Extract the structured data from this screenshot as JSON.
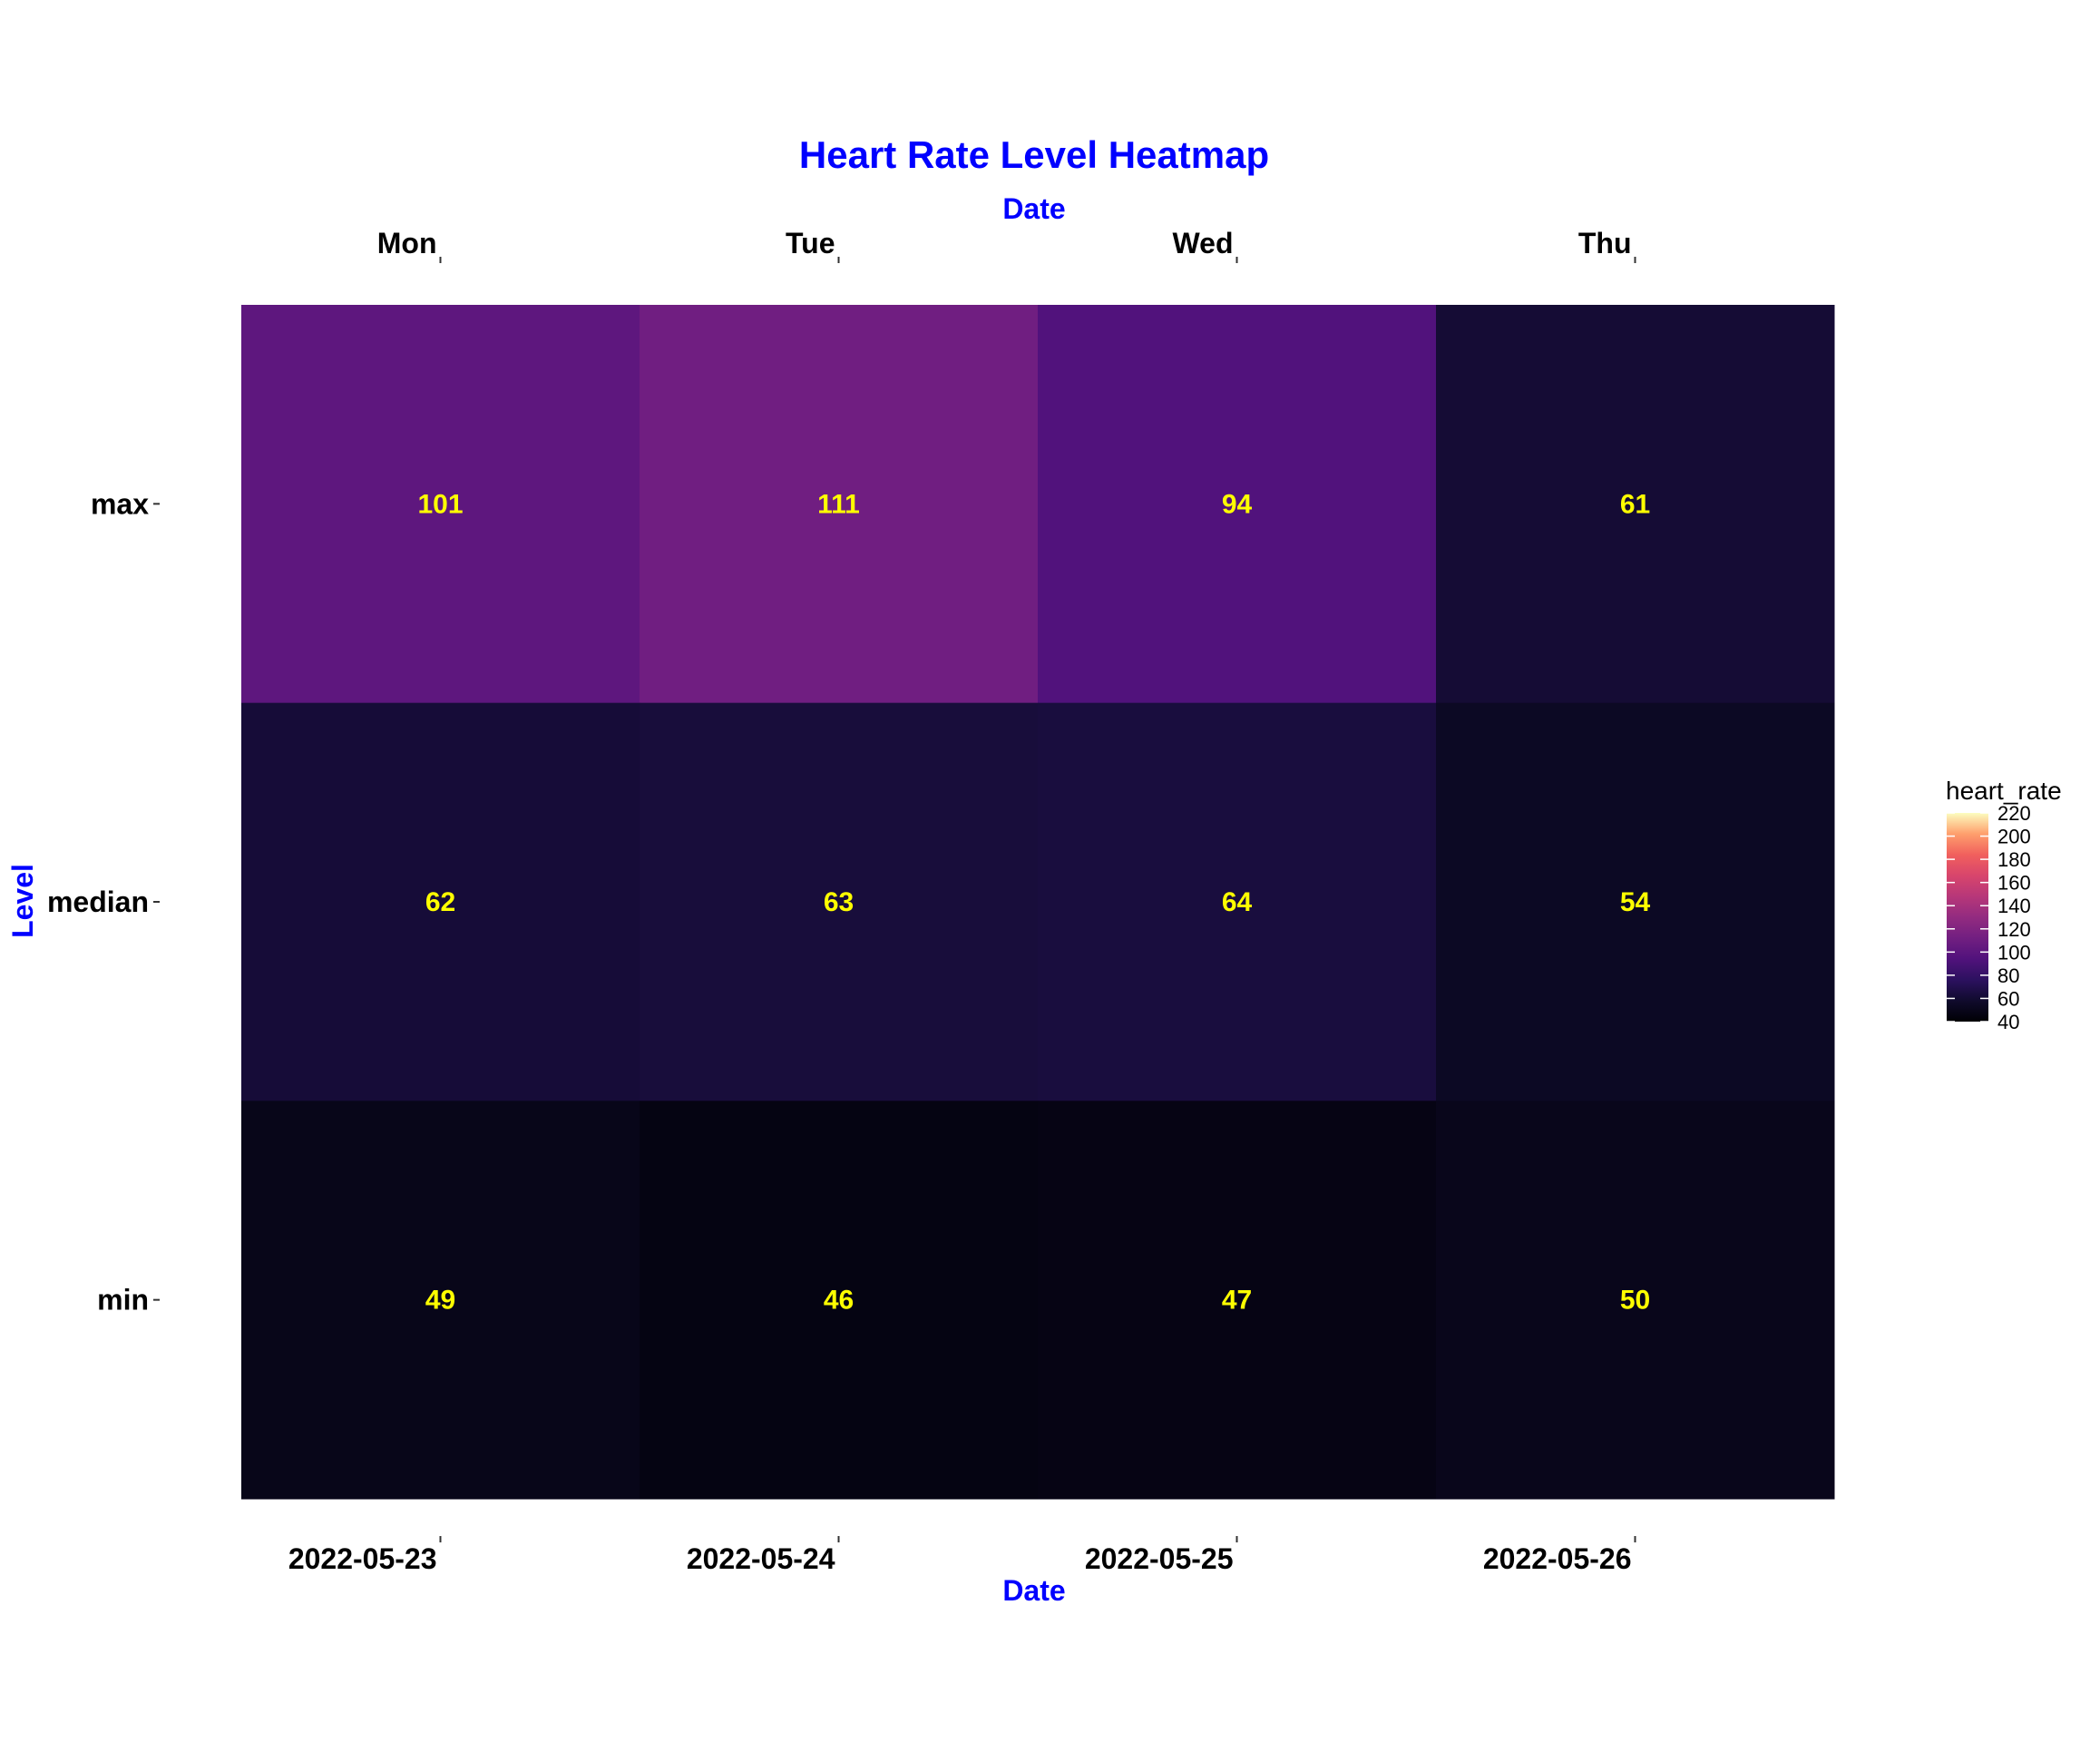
{
  "chart_data": {
    "type": "heatmap",
    "title": "Heart Rate Level Heatmap",
    "xlabel": "Date",
    "x2label": "Date",
    "ylabel": "Level",
    "x": [
      "2022-05-23",
      "2022-05-24",
      "2022-05-25",
      "2022-05-26"
    ],
    "x_secondary": [
      "Mon",
      "Tue",
      "Wed",
      "Thu"
    ],
    "y": [
      "max",
      "median",
      "min"
    ],
    "values": [
      [
        101,
        111,
        94,
        61
      ],
      [
        62,
        63,
        64,
        54
      ],
      [
        49,
        46,
        47,
        50
      ]
    ],
    "colorscale": "magma",
    "color_range": [
      40,
      220
    ],
    "colorbar": {
      "title": "heart_rate",
      "ticks": [
        40,
        60,
        80,
        100,
        120,
        140,
        160,
        180,
        200,
        220
      ]
    },
    "label_color": "#ffff00",
    "axis_title_color": "#0000ff",
    "legend": "right"
  }
}
